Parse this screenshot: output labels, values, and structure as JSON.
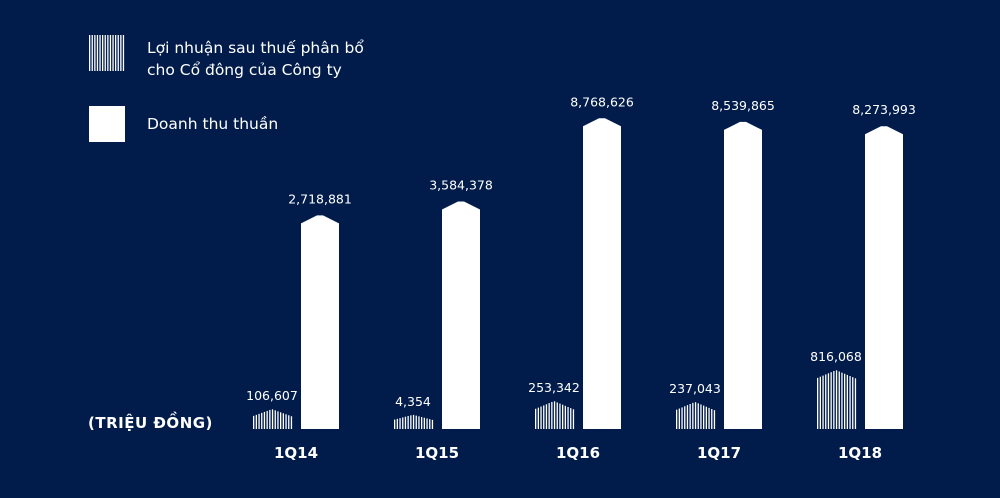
{
  "chart_data": {
    "type": "bar",
    "unit_label": "(TRIỆU ĐỒNG)",
    "categories": [
      "1Q14",
      "1Q15",
      "1Q16",
      "1Q17",
      "1Q18"
    ],
    "series": [
      {
        "name": "Lợi nhuận sau thuế phân bổ cho Cổ đông của Công ty",
        "name_lines": [
          "Lợi nhuận sau thuế phân bổ",
          "cho Cổ đông của Công ty"
        ],
        "style": "striped",
        "values": [
          106607,
          4354,
          253342,
          237043,
          816068
        ],
        "labels": [
          "106,607",
          "4,354",
          "253,342",
          "237,043",
          "816,068"
        ]
      },
      {
        "name": "Doanh thu thuần",
        "style": "solid",
        "values": [
          2718881,
          3584378,
          8768626,
          8539865,
          8273993
        ],
        "labels": [
          "2,718,881",
          "3,584,378",
          "8,768,626",
          "8,539,865",
          "8,273,993"
        ]
      }
    ],
    "legend_placement": "top-left",
    "grid": false,
    "colors": {
      "background": "#011c4b",
      "bars": "#ffffff"
    }
  }
}
